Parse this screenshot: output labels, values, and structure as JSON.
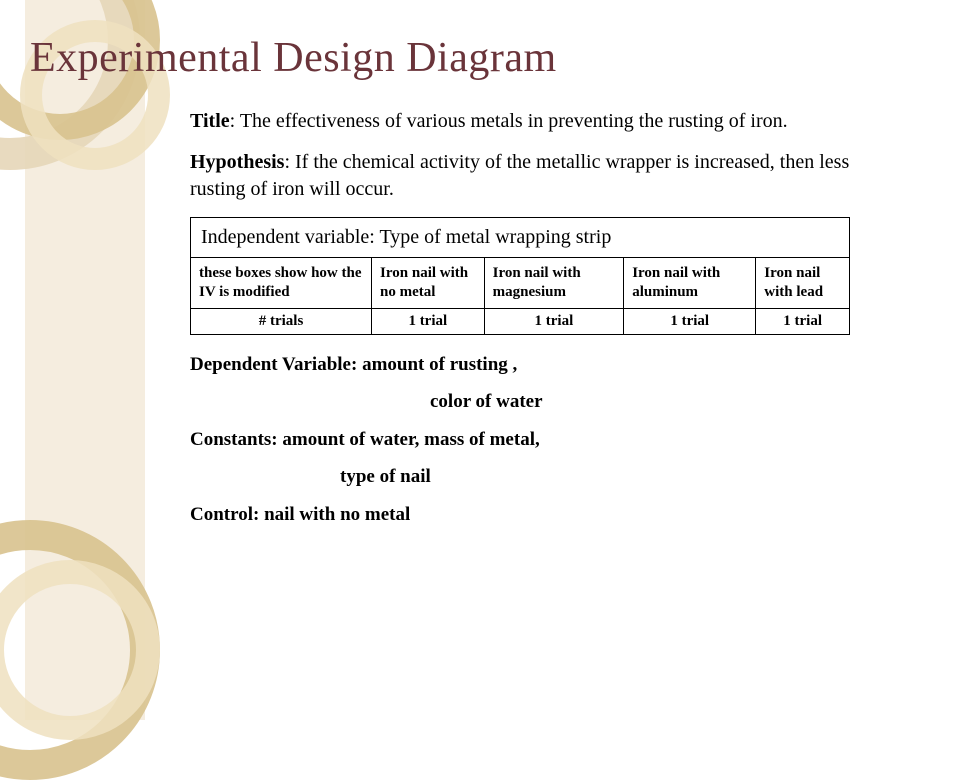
{
  "slide": {
    "heading": "Experimental Design Diagram",
    "title_label": "Title",
    "title_text": ": The effectiveness of various metals in preventing the rusting of iron.",
    "hypothesis_label": "Hypothesis",
    "hypothesis_text": ": If the chemical activity of the metallic wrapper is increased, then less rusting of iron will occur.",
    "iv_text": "Independent variable: Type of metal wrapping strip",
    "conditions": [
      "these boxes show how the IV is modified",
      "Iron nail with no metal",
      "Iron nail with magnesium",
      "Iron nail with aluminum",
      "Iron nail with lead"
    ],
    "trials_label": "# trials",
    "trials": [
      "1 trial",
      "1 trial",
      "1 trial",
      "1 trial"
    ],
    "dv_label": "Dependent Variable:",
    "dv_text1": " amount of rusting ,",
    "dv_text2": "color of water",
    "constants_label": "Constants:",
    "constants_text1": " amount of water, mass of metal,",
    "constants_text2": "type of nail",
    "control_label": "Control:",
    "control_text": " nail with no metal"
  },
  "style": {
    "heading_color": "#6a343a",
    "heading_fontsize": 42,
    "body_fontsize": 20,
    "table_body_fontsize": 15,
    "background": "#ffffff",
    "deco_strip_color": "#f5eddf",
    "deco_ring_colors": [
      "#e6d6b8",
      "#d8c28e",
      "#efe0c0"
    ]
  }
}
